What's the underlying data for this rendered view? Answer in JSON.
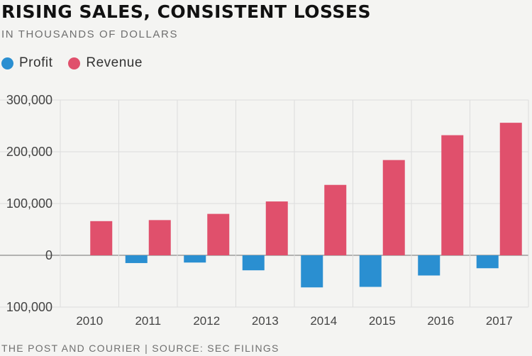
{
  "header": {
    "title": "RISING SALES, CONSISTENT LOSSES",
    "subtitle": "IN THOUSANDS OF DOLLARS"
  },
  "footer": {
    "source": "THE POST AND COURIER | SOURCE: SEC FILINGS"
  },
  "colors": {
    "profit": "#2a8fd1",
    "revenue": "#e0506c",
    "grid": "#dcdcdc",
    "background": "#f4f4f2"
  },
  "chart_data": {
    "type": "bar",
    "title": "RISING SALES, CONSISTENT LOSSES",
    "subtitle": "IN THOUSANDS OF DOLLARS",
    "xlabel": "",
    "ylabel": "",
    "ylim": [
      -100000,
      300000
    ],
    "y_ticks": [
      300000,
      200000,
      100000,
      0,
      -100000
    ],
    "y_tick_labels": [
      "300,000",
      "200,000",
      "100,000",
      "0",
      "100,000"
    ],
    "grid": true,
    "legend_position": "top-left",
    "categories": [
      "2010",
      "2011",
      "2012",
      "2013",
      "2014",
      "2015",
      "2016",
      "2017"
    ],
    "series": [
      {
        "name": "Profit",
        "color": "#2a8fd1",
        "values": [
          0,
          -15000,
          -14000,
          -29000,
          -62000,
          -61000,
          -39000,
          -25000
        ]
      },
      {
        "name": "Revenue",
        "color": "#e0506c",
        "values": [
          66000,
          68000,
          80000,
          104000,
          136000,
          184000,
          232000,
          256000
        ]
      }
    ]
  }
}
